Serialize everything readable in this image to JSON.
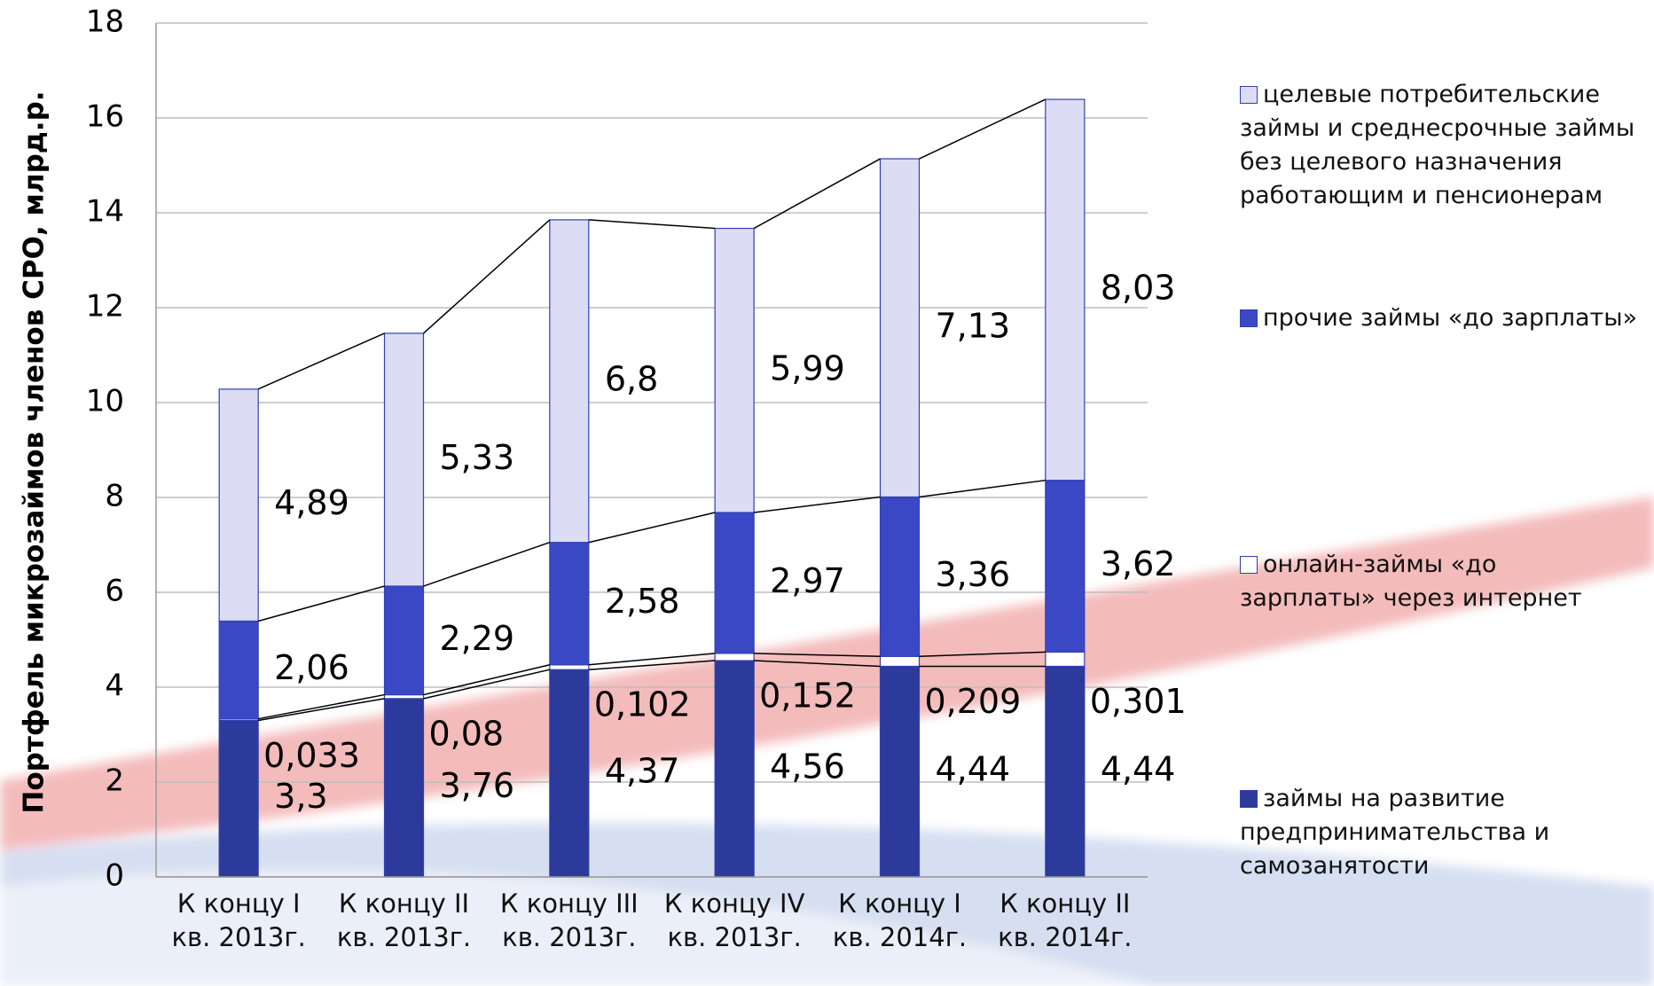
{
  "chart_data": {
    "type": "stacked-bar",
    "y_label": "Портфель микрозаймов  членов СРО, млрд.р.",
    "categories": [
      "К концу I кв. 2013г.",
      "К концу II кв. 2013г.",
      "К концу III кв. 2013г.",
      "К концу IV кв. 2013г.",
      "К концу I кв. 2014г.",
      "К концу II кв. 2014г."
    ],
    "series": [
      {
        "name": "займы на развитие предпринимательства и самозанятости",
        "color": "#2b3a9b",
        "values": [
          3.3,
          3.76,
          4.37,
          4.56,
          4.44,
          4.44
        ],
        "value_labels": [
          "3,3",
          "3,76",
          "4,37",
          "4,56",
          "4,44",
          "4,44"
        ]
      },
      {
        "name": "онлайн-займы «до зарплаты» через интернет",
        "color": "#ffffff",
        "values": [
          0.033,
          0.08,
          0.102,
          0.152,
          0.209,
          0.301
        ],
        "value_labels": [
          "0,033",
          "0,08",
          "0,102",
          "0,152",
          "0,209",
          "0,301"
        ]
      },
      {
        "name": "прочие займы «до зарплаты»",
        "color": "#3b48c6",
        "values": [
          2.06,
          2.29,
          2.58,
          2.97,
          3.36,
          3.62
        ],
        "value_labels": [
          "2,06",
          "2,29",
          "2,58",
          "2,97",
          "3,36",
          "3,62"
        ]
      },
      {
        "name": "целевые потребительские займы и среднесрочные займы без целевого назначения работающим и пенсионерам",
        "color": "#dcdcf4",
        "values": [
          4.89,
          5.33,
          6.8,
          5.99,
          7.13,
          8.03
        ],
        "value_labels": [
          "4,89",
          "5,33",
          "6,8",
          "5,99",
          "7,13",
          "8,03"
        ]
      }
    ],
    "ylim": [
      0,
      18
    ],
    "yticks": [
      0,
      2,
      4,
      6,
      8,
      10,
      12,
      14,
      16,
      18
    ],
    "grid": true
  }
}
